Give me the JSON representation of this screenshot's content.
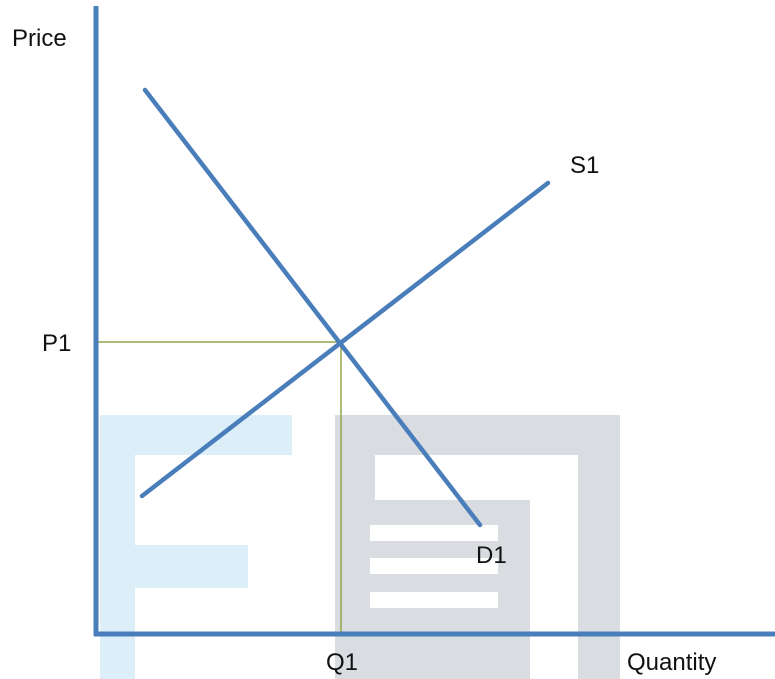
{
  "axes": {
    "y_label": "Price",
    "x_label": "Quantity"
  },
  "curves": {
    "supply_label": "S1",
    "demand_label": "D1"
  },
  "equilibrium": {
    "price_label": "P1",
    "quantity_label": "Q1"
  },
  "colors": {
    "curve": "#4A7EBB",
    "axis": "#4A7EBB",
    "guide": "#8FA64A",
    "watermark_blue": "#DCEEF8",
    "watermark_gray": "#D9DDE2"
  }
}
